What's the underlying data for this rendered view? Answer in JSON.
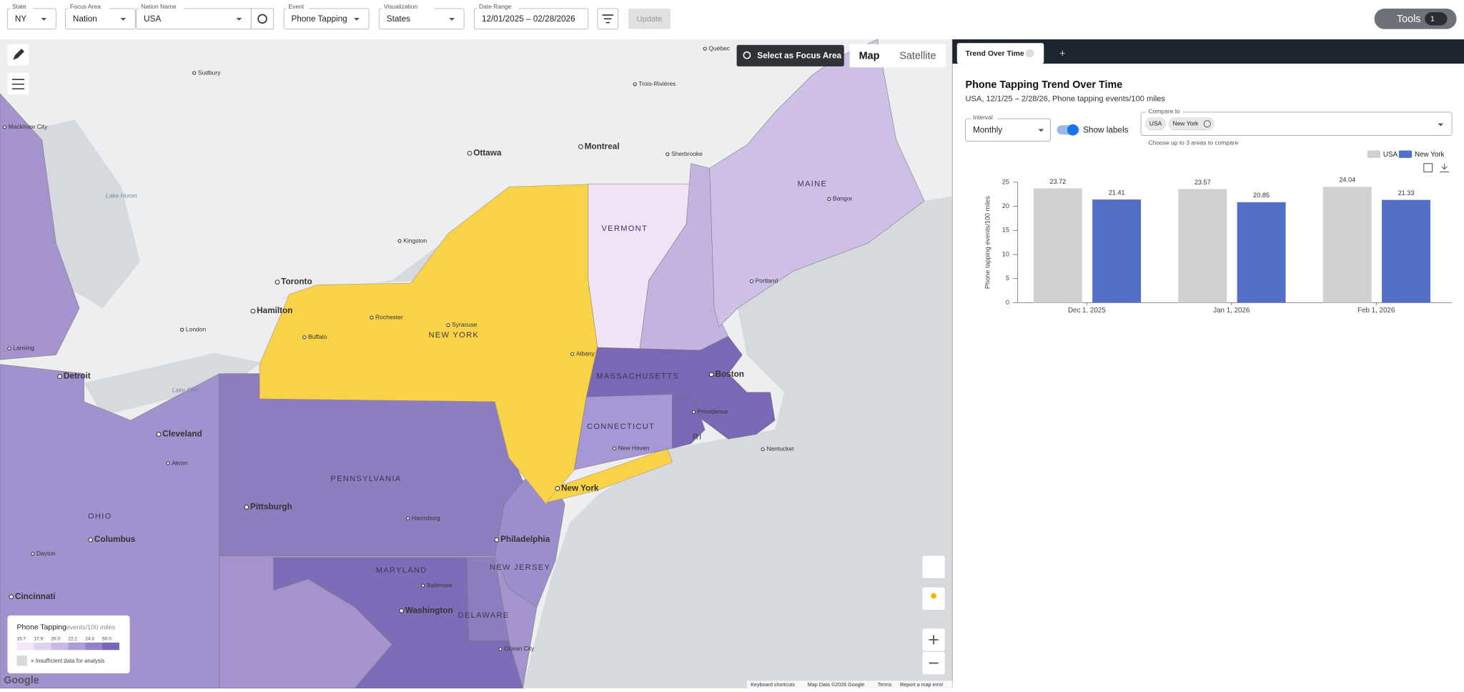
{
  "toolbar": {
    "fields": [
      {
        "label": "State",
        "value": "NY"
      },
      {
        "label": "Focus Area",
        "value": "Nation"
      },
      {
        "label": "Nation Name",
        "value": "USA"
      },
      {
        "label": "Event",
        "value": "Phone Tapping"
      },
      {
        "label": "Visualization",
        "value": "States"
      },
      {
        "label": "Date Range",
        "value": "12/01/2025 – 02/28/2026"
      }
    ],
    "update": "Update",
    "tools": "Tools",
    "tools_badge": "1"
  },
  "map": {
    "focus_button": "Select as Focus Area",
    "map_types": [
      "Map",
      "Satellite"
    ],
    "legend": {
      "title": "Phone Tapping",
      "unit": "events/100 miles",
      "values": [
        "15.7",
        "17.9",
        "20.0",
        "22.2",
        "24.3",
        "50.0"
      ],
      "insufficient": "= Insufficient data for analysis"
    },
    "footer": [
      "Keyboard shortcuts",
      "Map Data ©2026 Google",
      "Terms",
      "Report a map error"
    ],
    "logo": "Google",
    "labels": [
      "Québec",
      "Sudbury",
      "Trois-Rivières",
      "Ottawa",
      "Montreal",
      "Sherbrooke",
      "MAINE",
      "Bangor",
      "VERMONT",
      "Kingston",
      "Toronto",
      "Hamilton",
      "London",
      "Rochester",
      "Syracuse",
      "NEW YORK",
      "Portland",
      "Albany",
      "Buffalo",
      "MASSACHUSETTS",
      "Boston",
      "Providence",
      "CONNECTICUT",
      "RI",
      "New Haven",
      "Nantucket",
      "Detroit",
      "Cleveland",
      "Akron",
      "New York",
      "PENNSYLVANIA",
      "Pittsburgh",
      "Harrisburg",
      "OHIO",
      "Columbus",
      "Philadelphia",
      "NEW JERSEY",
      "MARYLAND",
      "Baltimore",
      "Dayton",
      "Washington",
      "DELAWARE",
      "Ocean City",
      "Cincinnati",
      "Lansing",
      "Mackinaw City",
      "Lake Erie",
      "Lake Huron"
    ]
  },
  "panel": {
    "tab": "Trend Over Time",
    "interval_label": "Interval",
    "interval": "Monthly",
    "show_labels": "Show labels",
    "compare_label": "Compare to",
    "compare_chips": [
      "USA",
      "New York"
    ],
    "compare_hint": "Choose up to 3 areas to compare"
  },
  "chart_data": {
    "type": "bar",
    "title": "Phone Tapping Trend Over Time",
    "subtitle": "USA, 12/1/25 – 2/28/26, Phone tapping events/100 miles",
    "y_label": "Phone tapping events/100 miles",
    "categories": [
      "Dec 1, 2025",
      "Jan 1, 2026",
      "Feb 1, 2026"
    ],
    "series": [
      {
        "name": "USA",
        "color": "#d0d0d0",
        "values": [
          23.72,
          23.57,
          24.04
        ]
      },
      {
        "name": "New York",
        "color": "#5470c6",
        "values": [
          21.41,
          20.85,
          21.33
        ]
      }
    ],
    "ylim": [
      0,
      25
    ],
    "yticks": [
      0,
      5,
      10,
      15,
      20,
      25
    ],
    "legend": "top-right",
    "data_labels": true
  }
}
